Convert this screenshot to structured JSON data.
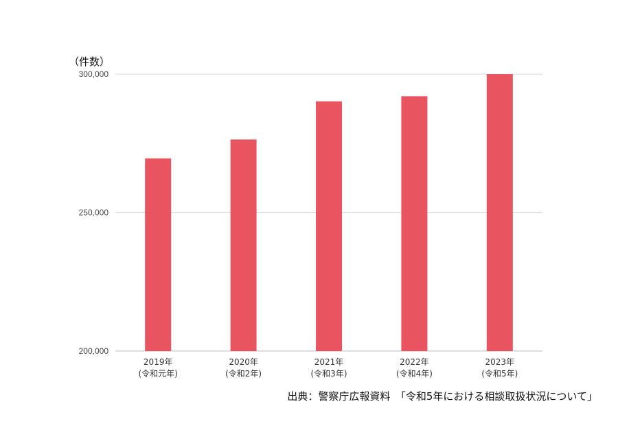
{
  "chart_data": {
    "type": "bar",
    "ylabel": "（件数）",
    "categories": [
      [
        "2019年",
        "(令和元年)"
      ],
      [
        "2020年",
        "(令和2年)"
      ],
      [
        "2021年",
        "(令和3年)"
      ],
      [
        "2022年",
        "(令和4年)"
      ],
      [
        "2023年",
        "(令和5年)"
      ]
    ],
    "values": [
      269600,
      276400,
      290200,
      292000,
      300000
    ],
    "ylim": [
      200000,
      300000
    ],
    "yticks": [
      200000,
      250000,
      300000
    ],
    "ytick_labels": [
      "200,000",
      "250,000",
      "300,000"
    ],
    "bar_color": "#e8545f",
    "grid": true
  },
  "source_text": "出典：警察庁広報資料　「令和5年における相談取扱状況について」"
}
